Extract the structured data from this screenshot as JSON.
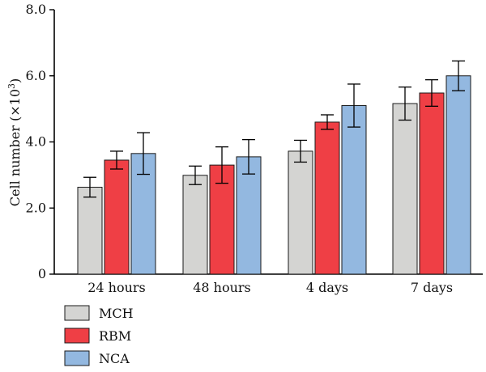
{
  "chart_data": {
    "type": "bar",
    "title": "",
    "xlabel": "",
    "ylabel": "Cell number (×10",
    "ylabel_sup": "3",
    "ylabel_close": ")",
    "ylim": [
      0,
      8.0
    ],
    "yticks": [
      {
        "value": 0,
        "label": "0"
      },
      {
        "value": 2.0,
        "label": "2.0"
      },
      {
        "value": 4.0,
        "label": "4.0"
      },
      {
        "value": 6.0,
        "label": "6.0"
      },
      {
        "value": 8.0,
        "label": "8.0"
      }
    ],
    "categories": [
      "24 hours",
      "48 hours",
      "4 days",
      "7 days"
    ],
    "series": [
      {
        "name": "MCH",
        "color": "#d4d4d2",
        "values": [
          2.63,
          2.99,
          3.72,
          5.16
        ],
        "errors": [
          0.3,
          0.28,
          0.33,
          0.5
        ]
      },
      {
        "name": "RBM",
        "color": "#ef3f45",
        "values": [
          3.45,
          3.3,
          4.6,
          5.48
        ],
        "errors": [
          0.27,
          0.55,
          0.22,
          0.4
        ]
      },
      {
        "name": "NCA",
        "color": "#93b8e0",
        "values": [
          3.65,
          3.55,
          5.1,
          6.0
        ],
        "errors": [
          0.63,
          0.52,
          0.65,
          0.45
        ]
      }
    ],
    "grid": false,
    "legend_position": "bottom-left"
  }
}
